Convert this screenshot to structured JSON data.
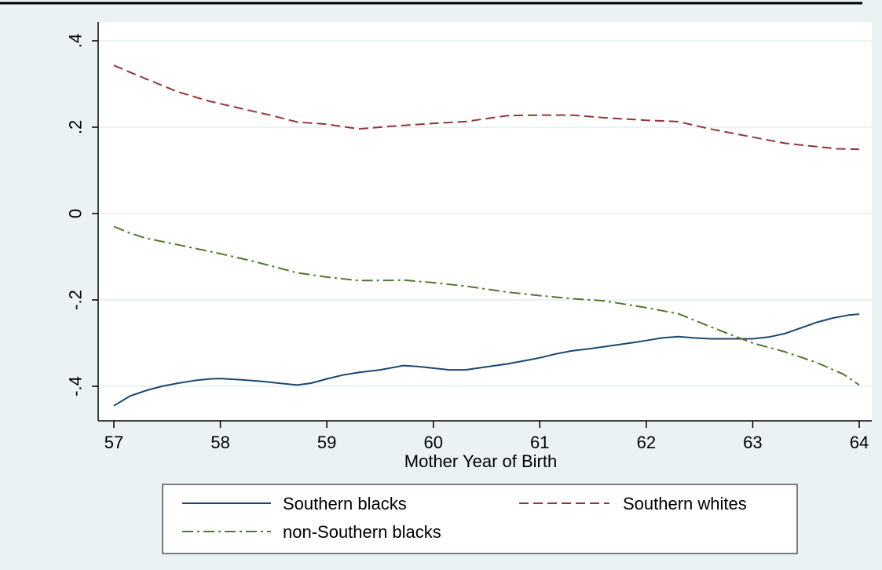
{
  "chart_data": {
    "type": "line",
    "title": "",
    "xlabel": "Mother Year of Birth",
    "ylabel": "",
    "xlim": [
      57,
      64
    ],
    "ylim": [
      -0.47,
      0.44
    ],
    "x_ticks": [
      57,
      58,
      59,
      60,
      61,
      62,
      63,
      64
    ],
    "x_tick_labels": [
      "57",
      "58",
      "59",
      "60",
      "61",
      "62",
      "63",
      "64"
    ],
    "y_ticks": [
      -0.4,
      -0.2,
      0,
      0.2,
      0.4
    ],
    "y_tick_labels": [
      "-.4",
      "-.2",
      "0",
      ".2",
      ".4"
    ],
    "grid": true,
    "legend_position": "bottom",
    "colors": {
      "background": "#eaf2f3",
      "plot_background": "#ffffff",
      "grid": "#eaf2f3",
      "southern_blacks": "#1a476f",
      "southern_whites": "#90353b",
      "non_southern_blacks": "#55752f"
    },
    "series": [
      {
        "name": "Southern blacks",
        "style": "solid",
        "x": [
          57,
          57.15,
          57.3,
          57.45,
          57.6,
          57.75,
          57.9,
          58,
          58.2,
          58.4,
          58.6,
          58.72,
          58.85,
          59,
          59.15,
          59.3,
          59.5,
          59.72,
          59.85,
          60,
          60.15,
          60.3,
          60.5,
          60.7,
          60.9,
          61,
          61.15,
          61.3,
          61.5,
          61.7,
          61.9,
          62,
          62.15,
          62.3,
          62.45,
          62.6,
          62.8,
          63,
          63.15,
          63.3,
          63.45,
          63.6,
          63.75,
          63.9,
          64
        ],
        "y": [
          -0.445,
          -0.423,
          -0.41,
          -0.4,
          -0.393,
          -0.387,
          -0.383,
          -0.382,
          -0.385,
          -0.389,
          -0.394,
          -0.397,
          -0.393,
          -0.383,
          -0.374,
          -0.368,
          -0.362,
          -0.352,
          -0.354,
          -0.358,
          -0.362,
          -0.362,
          -0.355,
          -0.348,
          -0.339,
          -0.334,
          -0.325,
          -0.318,
          -0.312,
          -0.305,
          -0.298,
          -0.294,
          -0.288,
          -0.285,
          -0.288,
          -0.29,
          -0.29,
          -0.29,
          -0.286,
          -0.278,
          -0.265,
          -0.252,
          -0.242,
          -0.235,
          -0.233
        ]
      },
      {
        "name": "Southern whites",
        "style": "dashed",
        "x": [
          57,
          57.3,
          57.6,
          57.9,
          58.2,
          58.5,
          58.72,
          59,
          59.3,
          59.6,
          60,
          60.3,
          60.7,
          61,
          61.3,
          61.6,
          62,
          62.3,
          62.6,
          63,
          63.3,
          63.6,
          63.8,
          64
        ],
        "y": [
          0.343,
          0.312,
          0.282,
          0.26,
          0.243,
          0.226,
          0.212,
          0.207,
          0.196,
          0.202,
          0.209,
          0.213,
          0.227,
          0.228,
          0.228,
          0.222,
          0.216,
          0.213,
          0.196,
          0.177,
          0.163,
          0.155,
          0.15,
          0.149
        ]
      },
      {
        "name": "non-Southern blacks",
        "style": "dash-dot",
        "x": [
          57,
          57.15,
          57.3,
          57.5,
          57.75,
          58,
          58.3,
          58.72,
          59,
          59.3,
          59.5,
          59.72,
          60,
          60.3,
          60.7,
          61,
          61.3,
          61.6,
          62,
          62.3,
          62.6,
          63,
          63.3,
          63.6,
          63.85,
          64
        ],
        "y": [
          -0.03,
          -0.045,
          -0.057,
          -0.067,
          -0.08,
          -0.093,
          -0.11,
          -0.137,
          -0.147,
          -0.155,
          -0.155,
          -0.154,
          -0.16,
          -0.168,
          -0.182,
          -0.19,
          -0.197,
          -0.202,
          -0.218,
          -0.232,
          -0.262,
          -0.3,
          -0.32,
          -0.345,
          -0.372,
          -0.397
        ]
      }
    ]
  }
}
